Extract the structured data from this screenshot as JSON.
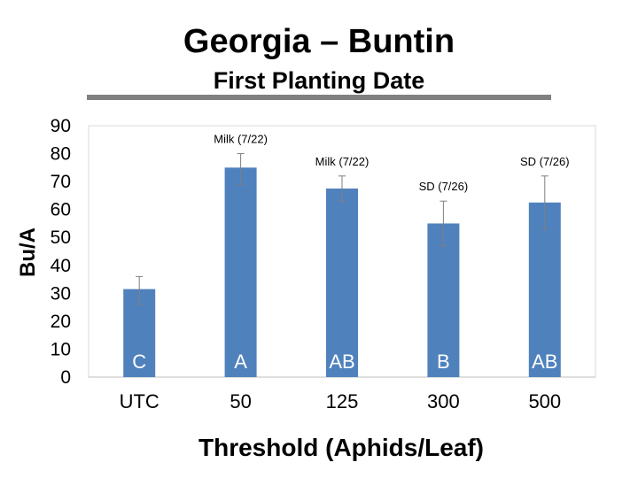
{
  "title": "Georgia – Buntin",
  "subtitle": "First Planting Date",
  "chart_data": {
    "type": "bar",
    "categories": [
      "UTC",
      "50",
      "125",
      "300",
      "500"
    ],
    "values": [
      31.5,
      75,
      67.5,
      55,
      62.5
    ],
    "error_low": [
      26,
      69,
      63,
      47,
      53
    ],
    "error_high": [
      36,
      80,
      72,
      63,
      72
    ],
    "letters": [
      "C",
      "A",
      "AB",
      "B",
      "AB"
    ],
    "annotations": [
      "",
      "Milk (7/22)",
      "Milk (7/22)",
      "SD (7/26)",
      "SD (7/26)"
    ],
    "xlabel": "Threshold (Aphids/Leaf)",
    "ylabel": "Bu/A",
    "ylim": [
      0,
      90
    ],
    "yticks": [
      0,
      10,
      20,
      30,
      40,
      50,
      60,
      70,
      80,
      90
    ],
    "grid": false,
    "bar_color": "#4f81bd"
  }
}
